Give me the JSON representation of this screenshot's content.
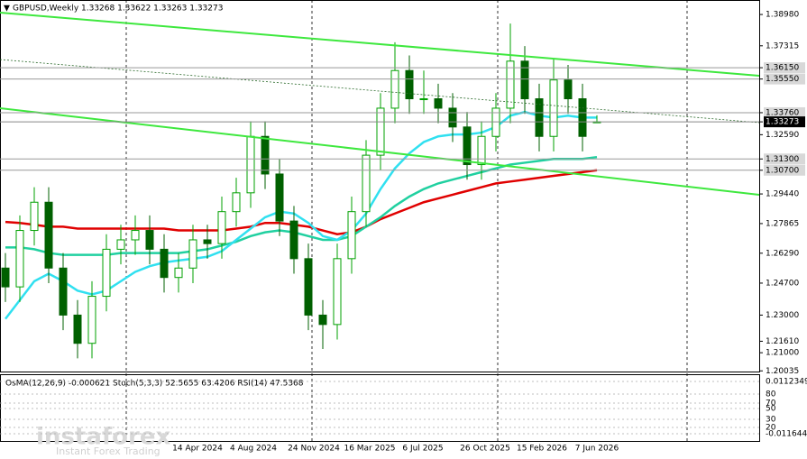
{
  "chart_data": {
    "type": "candlestick",
    "title": "GBPUSD,Weekly  1.33268 1.33622 1.33263 1.33273",
    "ylim": [
      1.2,
      1.3975
    ],
    "yticks": [
      {
        "value": 1.3898,
        "label": "1.38980"
      },
      {
        "value": 1.37315,
        "label": "1.37315"
      },
      {
        "value": 1.3615,
        "label": "1.36150",
        "style": "level"
      },
      {
        "value": 1.3555,
        "label": "1.35550",
        "style": "level"
      },
      {
        "value": 1.3376,
        "label": "1.33760",
        "style": "level"
      },
      {
        "value": 1.33273,
        "label": "1.33273",
        "style": "current"
      },
      {
        "value": 1.3259,
        "label": "1.32590"
      },
      {
        "value": 1.313,
        "label": "1.31300",
        "style": "level"
      },
      {
        "value": 1.307,
        "label": "1.30700",
        "style": "level"
      },
      {
        "value": 1.2944,
        "label": "1.29440"
      },
      {
        "value": 1.27865,
        "label": "1.27865"
      },
      {
        "value": 1.2629,
        "label": "1.26290"
      },
      {
        "value": 1.247,
        "label": "1.24700"
      },
      {
        "value": 1.23,
        "label": "1.23000"
      },
      {
        "value": 1.2161,
        "label": "1.21610"
      },
      {
        "value": 1.21,
        "label": "1.21000"
      },
      {
        "value": 1.20035,
        "label": "1.20035"
      }
    ],
    "date_labels": [
      "14 Apr 2024",
      "4 Aug 2024",
      "24 Nov 2024",
      "16 Mar 2025",
      "6 Jul 2025",
      "26 Oct 2025",
      "15 Feb 2026",
      "7 Jun 2026"
    ],
    "bull_color": "#00a000",
    "bear_color": "#006000",
    "open": [
      1.255,
      1.245,
      1.275,
      1.29,
      1.255,
      1.23,
      1.215,
      1.24,
      1.265,
      1.27,
      1.275,
      1.265,
      1.25,
      1.255,
      1.27,
      1.268,
      1.285,
      1.295,
      1.325,
      1.305,
      1.28,
      1.26,
      1.23,
      1.225,
      1.26,
      1.285,
      1.315,
      1.34,
      1.36,
      1.345,
      1.345,
      1.34,
      1.33,
      1.31,
      1.325,
      1.34,
      1.365,
      1.345,
      1.325,
      1.355,
      1.345,
      1.33268
    ],
    "high": [
      1.263,
      1.283,
      1.298,
      1.298,
      1.263,
      1.238,
      1.248,
      1.273,
      1.278,
      1.283,
      1.283,
      1.273,
      1.263,
      1.278,
      1.278,
      1.293,
      1.303,
      1.333,
      1.333,
      1.313,
      1.288,
      1.268,
      1.238,
      1.268,
      1.293,
      1.323,
      1.348,
      1.375,
      1.368,
      1.36,
      1.353,
      1.348,
      1.338,
      1.333,
      1.348,
      1.385,
      1.373,
      1.353,
      1.366,
      1.363,
      1.353,
      1.33622
    ],
    "low": [
      1.237,
      1.237,
      1.267,
      1.247,
      1.222,
      1.207,
      1.207,
      1.232,
      1.257,
      1.262,
      1.257,
      1.242,
      1.242,
      1.247,
      1.26,
      1.26,
      1.277,
      1.287,
      1.297,
      1.272,
      1.252,
      1.222,
      1.212,
      1.217,
      1.252,
      1.277,
      1.307,
      1.332,
      1.337,
      1.337,
      1.332,
      1.322,
      1.302,
      1.302,
      1.317,
      1.332,
      1.337,
      1.317,
      1.317,
      1.337,
      1.317,
      1.33263
    ],
    "close": [
      1.245,
      1.275,
      1.29,
      1.255,
      1.23,
      1.215,
      1.24,
      1.265,
      1.27,
      1.275,
      1.265,
      1.25,
      1.255,
      1.27,
      1.268,
      1.285,
      1.295,
      1.325,
      1.305,
      1.28,
      1.26,
      1.23,
      1.225,
      1.26,
      1.285,
      1.315,
      1.34,
      1.36,
      1.345,
      1.345,
      1.34,
      1.33,
      1.31,
      1.325,
      1.34,
      1.365,
      1.345,
      1.325,
      1.355,
      1.345,
      1.325,
      1.33273
    ],
    "series": [
      {
        "color": "#e00000",
        "values": [
          1.2795,
          1.279,
          1.278,
          1.277,
          1.277,
          1.276,
          1.276,
          1.276,
          1.276,
          1.276,
          1.276,
          1.276,
          1.275,
          1.275,
          1.275,
          1.275,
          1.276,
          1.277,
          1.279,
          1.279,
          1.278,
          1.277,
          1.275,
          1.273,
          1.274,
          1.277,
          1.281,
          1.284,
          1.287,
          1.29,
          1.292,
          1.294,
          1.296,
          1.298,
          1.3,
          1.301,
          1.302,
          1.303,
          1.304,
          1.305,
          1.306,
          1.307
        ]
      },
      {
        "color": "#20d0a0",
        "values": [
          1.266,
          1.266,
          1.265,
          1.263,
          1.262,
          1.262,
          1.262,
          1.262,
          1.263,
          1.263,
          1.263,
          1.263,
          1.263,
          1.264,
          1.265,
          1.267,
          1.269,
          1.272,
          1.274,
          1.275,
          1.274,
          1.272,
          1.27,
          1.27,
          1.272,
          1.277,
          1.282,
          1.288,
          1.293,
          1.297,
          1.3,
          1.302,
          1.304,
          1.306,
          1.308,
          1.31,
          1.311,
          1.312,
          1.313,
          1.313,
          1.313,
          1.314
        ]
      },
      {
        "color": "#30e0f0",
        "values": [
          1.228,
          1.238,
          1.248,
          1.252,
          1.248,
          1.243,
          1.241,
          1.243,
          1.248,
          1.253,
          1.256,
          1.258,
          1.259,
          1.26,
          1.261,
          1.264,
          1.27,
          1.276,
          1.282,
          1.285,
          1.284,
          1.279,
          1.272,
          1.27,
          1.275,
          1.284,
          1.297,
          1.308,
          1.316,
          1.322,
          1.325,
          1.326,
          1.326,
          1.327,
          1.33,
          1.336,
          1.338,
          1.336,
          1.335,
          1.336,
          1.335,
          1.335
        ]
      }
    ]
  },
  "indicator": {
    "label": "OsMA(12,26,9) -0.000621  Stoch(5,3,3) 52.5655 63.4206  RSI(14) 47.5368",
    "ticks": [
      "0.0112349",
      "80",
      "70",
      "50",
      "30",
      "20",
      "-0.011644"
    ]
  },
  "watermark": {
    "name": "instaforex",
    "slogan": "Instant Forex Trading"
  }
}
